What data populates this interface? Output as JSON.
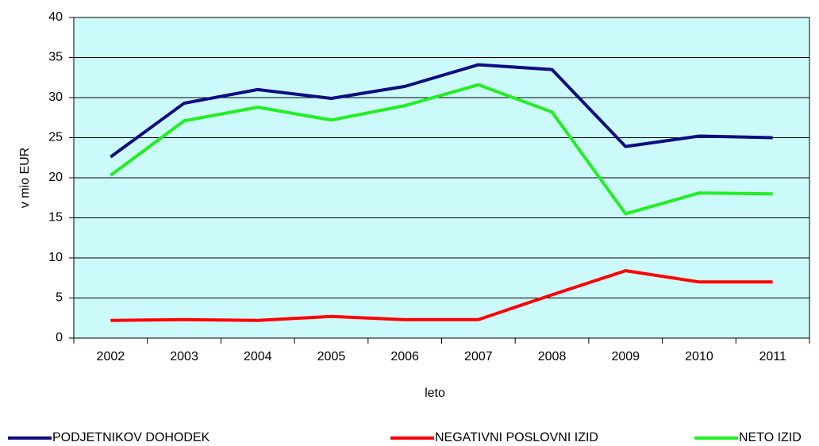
{
  "chart_data": {
    "type": "line",
    "categories": [
      "2002",
      "2003",
      "2004",
      "2005",
      "2006",
      "2007",
      "2008",
      "2009",
      "2010",
      "2011"
    ],
    "series": [
      {
        "name": "PODJETNIKOV DOHODEK",
        "color": "#0d0d80",
        "values": [
          22.6,
          29.3,
          31.0,
          29.9,
          31.4,
          34.1,
          33.5,
          23.9,
          25.2,
          25.0
        ]
      },
      {
        "name": "NEGATIVNI POSLOVNI IZID",
        "color": "#ff0000",
        "values": [
          2.2,
          2.3,
          2.2,
          2.7,
          2.3,
          2.3,
          5.4,
          8.4,
          7.0,
          7.0
        ]
      },
      {
        "name": "NETO IZID",
        "color": "#22ee22",
        "values": [
          20.3,
          27.1,
          28.8,
          27.2,
          29.0,
          31.6,
          28.2,
          15.5,
          18.1,
          18.0
        ]
      }
    ],
    "x_label": "leto",
    "y_label": "v mio EUR",
    "ylim": [
      0,
      40
    ],
    "yticks": [
      0,
      5,
      10,
      15,
      20,
      25,
      30,
      35,
      40
    ],
    "grid": true,
    "legend": "bottom",
    "plot_background": "#ccfafa"
  }
}
